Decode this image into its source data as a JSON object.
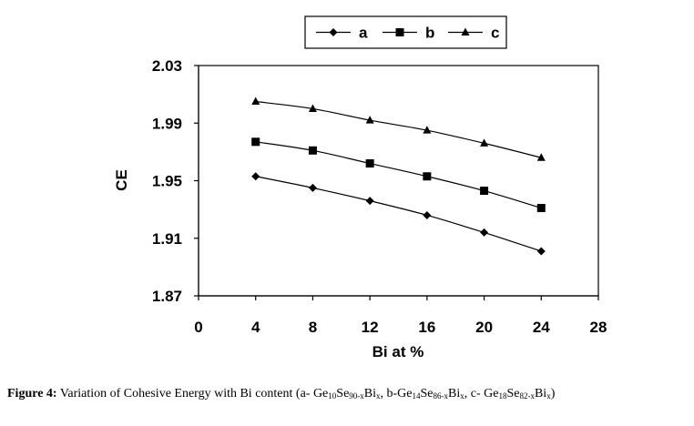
{
  "chart_data": {
    "type": "line",
    "title": "",
    "xlabel": "Bi at %",
    "ylabel": "CE",
    "xlim": [
      0,
      28
    ],
    "ylim": [
      1.87,
      2.03
    ],
    "x_ticks": [
      "0",
      "4",
      "8",
      "12",
      "16",
      "20",
      "24",
      "28"
    ],
    "y_ticks": [
      "1.87",
      "1.91",
      "1.95",
      "1.99",
      "2.03"
    ],
    "x": [
      4,
      8,
      12,
      16,
      20,
      24
    ],
    "series": [
      {
        "name": "a",
        "marker": "diamond",
        "values": [
          1.953,
          1.945,
          1.936,
          1.926,
          1.914,
          1.901
        ]
      },
      {
        "name": "b",
        "marker": "square",
        "values": [
          1.977,
          1.971,
          1.962,
          1.953,
          1.943,
          1.931
        ]
      },
      {
        "name": "c",
        "marker": "triangle",
        "values": [
          2.005,
          2.0,
          1.992,
          1.985,
          1.976,
          1.966
        ]
      }
    ],
    "legend_position": "top"
  },
  "caption": {
    "label": "Figure 4:",
    "intro": " Variation of Cohesive Energy with Bi content (a- Ge",
    "a_ge": "10",
    "a_se_word": "Se",
    "a_se": "90-x",
    "a_bi_word": "Bi",
    "a_bi": "x",
    "b_intro": ", b-Ge",
    "b_ge": "14",
    "b_se_word": "Se",
    "b_se": "86-x",
    "b_bi_word": "Bi",
    "b_bi": "x",
    "c_intro": ", c- Ge",
    "c_ge": "18",
    "c_se_word": "Se",
    "c_se": "82-x",
    "c_bi_word": "Bi",
    "c_bi": "x",
    "close": ")"
  }
}
